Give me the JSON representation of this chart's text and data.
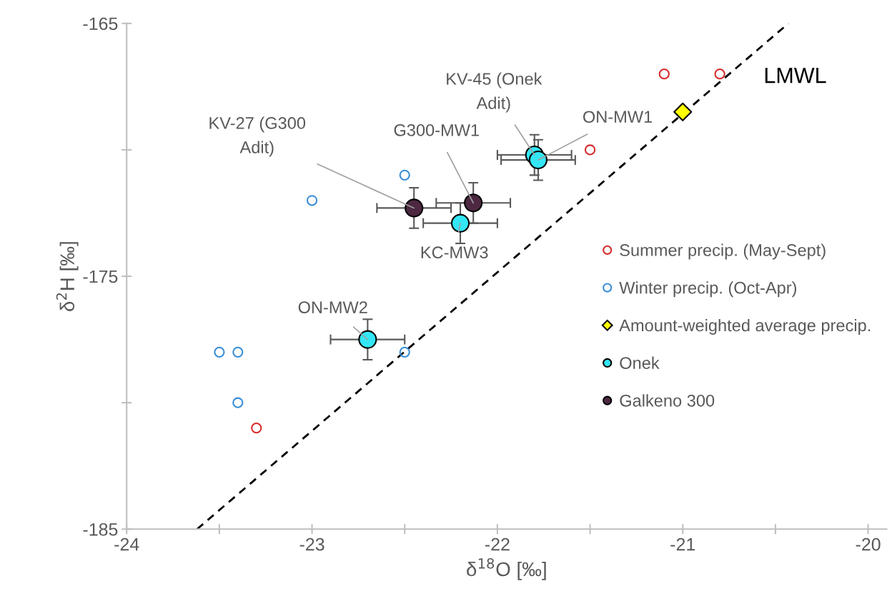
{
  "chart_data": {
    "type": "scatter",
    "xlabel": "δ$^{18}$O [‰]",
    "ylabel": "δ$^{2}$H [‰]",
    "xlim": [
      -24,
      -19.9
    ],
    "ylim": [
      -185,
      -165
    ],
    "xticks": [
      -24,
      {
        "value": -23.5,
        "label": null
      },
      -23,
      {
        "value": -22.5,
        "label": null
      },
      -22,
      {
        "value": -21.5,
        "label": null
      },
      -21,
      {
        "value": -20.5,
        "label": null
      },
      -20
    ],
    "yticks": [
      -185,
      {
        "value": -180,
        "label": null
      },
      -175,
      {
        "value": -170,
        "label": null
      },
      -165
    ],
    "grid": false,
    "legend": "right",
    "series": [
      {
        "name": "Summer precip. (May-Sept)",
        "color": "#d62d2d",
        "marker": "circle",
        "x": [
          -21.1,
          -20.8,
          -21.5,
          -23.3
        ],
        "values": [
          -167.0,
          -167.0,
          -170.0,
          -181.0
        ]
      },
      {
        "name": "Winter precip. (Oct-Apr)",
        "color": "#3a8ed8",
        "marker": "circle",
        "x": [
          -22.5,
          -23.0,
          -23.5,
          -23.4,
          -22.5,
          -23.4
        ],
        "values": [
          -171.0,
          -172.0,
          -178.0,
          -178.0,
          -178.0,
          -180.0
        ]
      },
      {
        "name": "Amount-weighted average precip.",
        "color": "#ffff00",
        "marker": "diamond",
        "x": [
          -21.0
        ],
        "values": [
          -168.5
        ]
      },
      {
        "name": "Onek",
        "color": "#33e6f5",
        "marker": "circle",
        "x": [
          -21.8,
          -21.78,
          -22.2,
          -22.7
        ],
        "values": [
          -170.2,
          -170.4,
          -172.9,
          -177.5
        ],
        "errors": [
          0.8,
          0.8,
          0.8,
          0.8
        ],
        "xerrors": [
          0.2,
          0.2,
          0.2,
          0.2
        ]
      },
      {
        "name": "Galkeno 300",
        "color": "#4d2840",
        "marker": "circle",
        "x": [
          -22.45,
          -22.13
        ],
        "values": [
          -172.3,
          -172.1
        ],
        "errors": [
          0.8,
          0.8
        ],
        "xerrors": [
          0.2,
          0.2
        ]
      },
      {
        "name": "LMWL",
        "type": "line",
        "color": "#000000",
        "line_style": "dashed",
        "marker": "none",
        "x": [
          -23.62,
          -20.43
        ],
        "values": [
          -185,
          -165
        ]
      }
    ],
    "annotations": [
      {
        "text": "KV-45 (Onek\nAdit)",
        "x": -21.8,
        "y": -170.2
      },
      {
        "text": "ON-MW1",
        "x": -21.78,
        "y": -170.4
      },
      {
        "text": "KC-MW3",
        "x": -22.2,
        "y": -172.9
      },
      {
        "text": "ON-MW2",
        "x": -22.7,
        "y": -177.5
      },
      {
        "text": "KV-27 (G300\nAdit)",
        "x": -22.45,
        "y": -172.3
      },
      {
        "text": "G300-MW1",
        "x": -22.13,
        "y": -172.1
      }
    ]
  }
}
